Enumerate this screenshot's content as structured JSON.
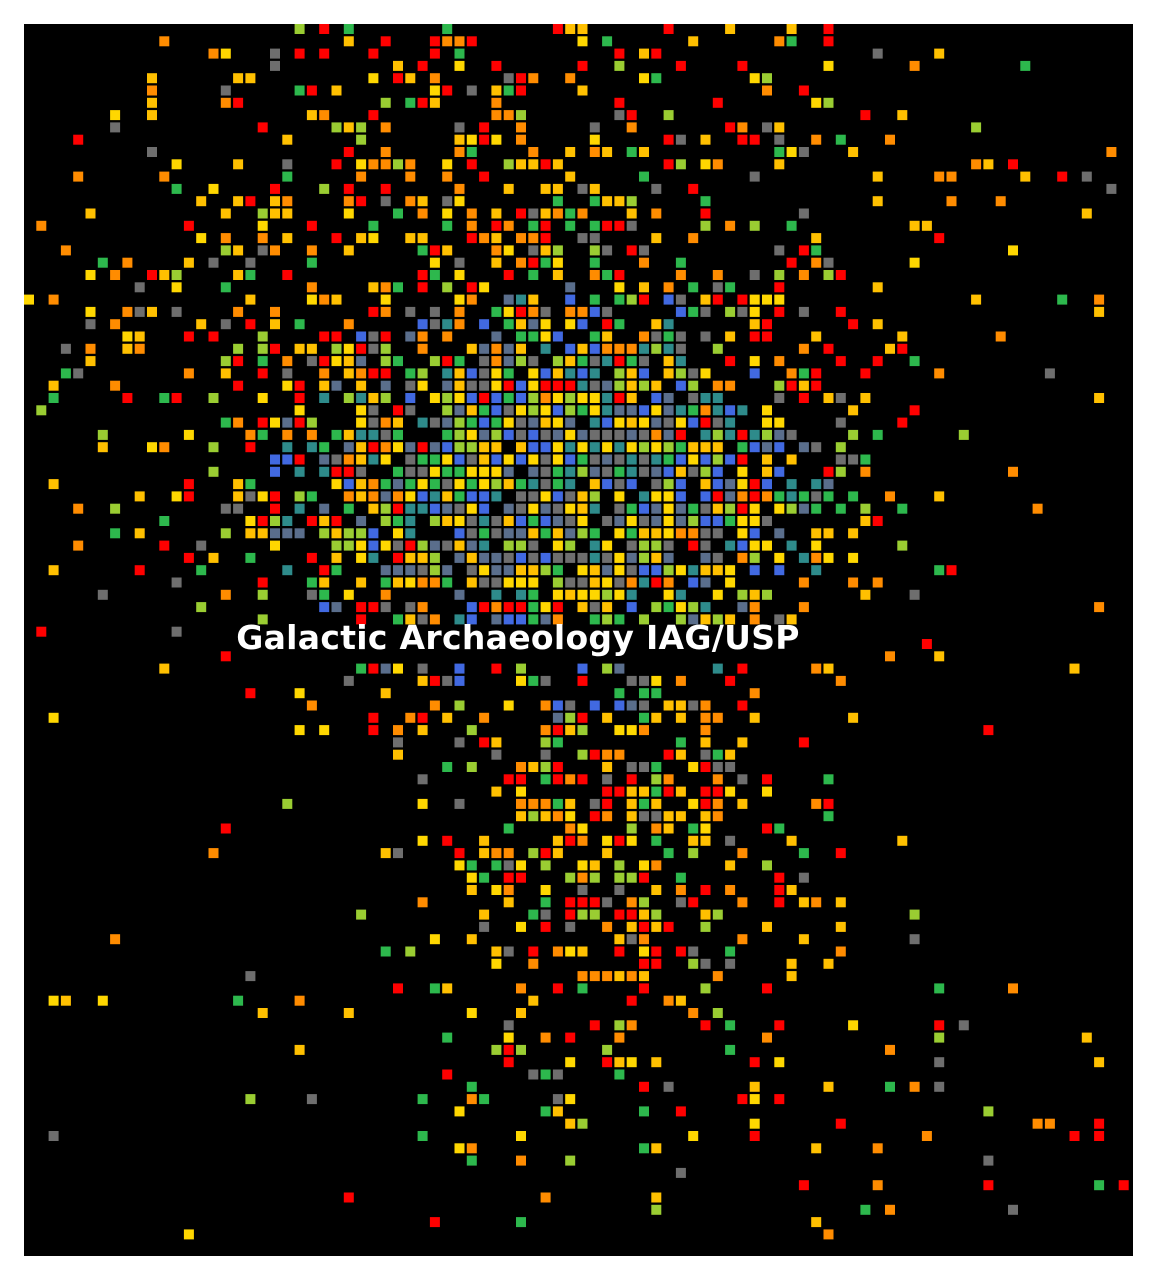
{
  "banner": {
    "text": "Galactic Archaeology IAG/USP"
  },
  "field": {
    "background": "#000000",
    "page_background": "#ffffff",
    "palette": [
      "#ff0000",
      "#ff8c00",
      "#ffc000",
      "#ffd700",
      "#9acd32",
      "#2db84d",
      "#2e8b8b",
      "#4169e1",
      "#5a6e8c",
      "#6e6e6e"
    ]
  }
}
